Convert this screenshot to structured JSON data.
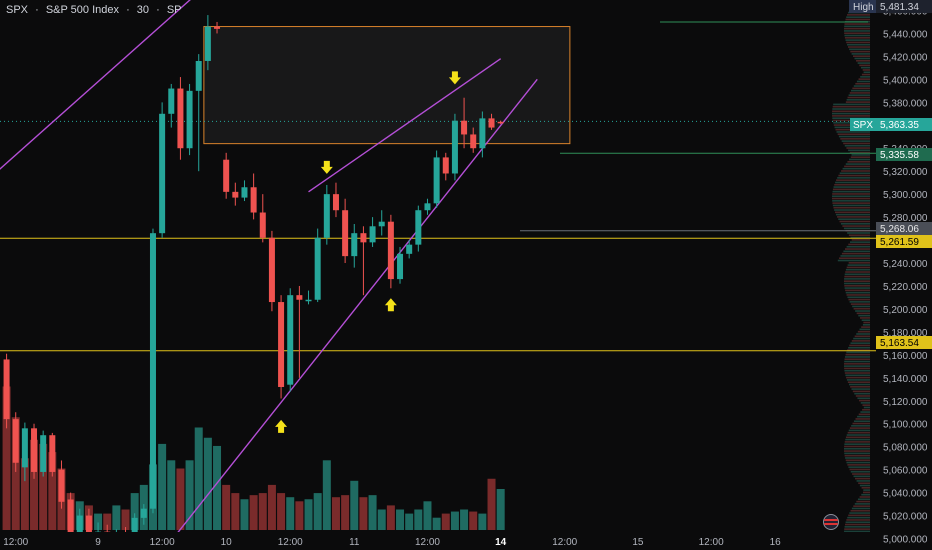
{
  "header": {
    "symbol": "SPX",
    "name": "S&P 500 Index",
    "interval": "30",
    "exchange": "SP",
    "separator": "·"
  },
  "price_labels": {
    "high_tag": "High",
    "high_value": "5,481.34",
    "current_symbol": "SPX",
    "current_value": "5,363.35",
    "level_1": "5,335.58",
    "level_2": "5,268.06",
    "level_3": "5,261.59",
    "level_4": "5,163.54"
  },
  "colors": {
    "background": "#0b0b0c",
    "up": "#26a69a",
    "down": "#ef5350",
    "up_volume": "#1f6b62",
    "down_volume": "#7a2b2b",
    "channel": "#b44fd6",
    "level_line": "#e0c21a",
    "box_border": "#d9822b",
    "arrow": "#f5e21a",
    "text": "#b2b5be",
    "current_tag": "#26a69a"
  },
  "chart_data": {
    "type": "candlestick",
    "title": "SPX · S&P 500 Index · 30 · SP",
    "ylim": [
      4990,
      5470
    ],
    "y_ticks": [
      5000,
      5020,
      5040,
      5060,
      5080,
      5100,
      5120,
      5140,
      5160,
      5180,
      5200,
      5220,
      5240,
      5260,
      5280,
      5300,
      5320,
      5340,
      5360,
      5380,
      5400,
      5420,
      5440,
      5460
    ],
    "x_ticks": [
      {
        "i": 1,
        "label": "12:00"
      },
      {
        "i": 10,
        "label": "9"
      },
      {
        "i": 17,
        "label": "12:00"
      },
      {
        "i": 24,
        "label": "10"
      },
      {
        "i": 31,
        "label": "12:00"
      },
      {
        "i": 38,
        "label": "11"
      },
      {
        "i": 46,
        "label": "12:00"
      },
      {
        "i": 54,
        "label": "14"
      },
      {
        "i": 61,
        "label": "12:00"
      },
      {
        "i": 69,
        "label": "15"
      },
      {
        "i": 77,
        "label": "12:00"
      },
      {
        "i": 84,
        "label": "16"
      }
    ],
    "candles": [
      {
        "o": 5156,
        "h": 5161,
        "c": 5104,
        "l": 5096
      },
      {
        "o": 5104,
        "h": 5110,
        "c": 5066,
        "l": 5058
      },
      {
        "o": 5062,
        "h": 5101,
        "c": 5096,
        "l": 5050
      },
      {
        "o": 5096,
        "h": 5100,
        "c": 5058,
        "l": 5052
      },
      {
        "o": 5058,
        "h": 5094,
        "c": 5090,
        "l": 5054
      },
      {
        "o": 5090,
        "h": 5092,
        "c": 5058,
        "l": 5054
      },
      {
        "o": 5060,
        "h": 5068,
        "c": 5032,
        "l": 5026
      },
      {
        "o": 5034,
        "h": 5040,
        "c": 5004,
        "l": 4998
      },
      {
        "o": 5004,
        "h": 5026,
        "c": 5020,
        "l": 4996
      },
      {
        "o": 5020,
        "h": 5026,
        "c": 5001,
        "l": 4995
      },
      {
        "o": 5001,
        "h": 5014,
        "c": 5006,
        "l": 4996
      },
      {
        "o": 5006,
        "h": 5012,
        "c": 5000,
        "l": 4994
      },
      {
        "o": 5000,
        "h": 5008,
        "c": 5003,
        "l": 4996
      },
      {
        "o": 5003,
        "h": 5010,
        "c": 5002,
        "l": 4996
      },
      {
        "o": 5002,
        "h": 5022,
        "c": 5018,
        "l": 5000
      },
      {
        "o": 5018,
        "h": 5030,
        "c": 5026,
        "l": 5012
      },
      {
        "o": 5026,
        "h": 5270,
        "c": 5266,
        "l": 5022
      },
      {
        "o": 5266,
        "h": 5380,
        "c": 5370,
        "l": 5262
      },
      {
        "o": 5370,
        "h": 5396,
        "c": 5392,
        "l": 5358
      },
      {
        "o": 5392,
        "h": 5402,
        "c": 5340,
        "l": 5330
      },
      {
        "o": 5340,
        "h": 5396,
        "c": 5390,
        "l": 5334
      },
      {
        "o": 5390,
        "h": 5422,
        "c": 5416,
        "l": 5320
      },
      {
        "o": 5416,
        "h": 5456,
        "c": 5446,
        "l": 5408
      },
      {
        "o": 5446,
        "h": 5450,
        "c": 5444,
        "l": 5440
      },
      {
        "o": 5330,
        "h": 5336,
        "c": 5302,
        "l": 5296
      },
      {
        "o": 5302,
        "h": 5310,
        "c": 5297,
        "l": 5290
      },
      {
        "o": 5297,
        "h": 5312,
        "c": 5306,
        "l": 5294
      },
      {
        "o": 5306,
        "h": 5318,
        "c": 5284,
        "l": 5278
      },
      {
        "o": 5284,
        "h": 5300,
        "c": 5262,
        "l": 5258
      },
      {
        "o": 5262,
        "h": 5268,
        "c": 5206,
        "l": 5198
      },
      {
        "o": 5206,
        "h": 5212,
        "c": 5132,
        "l": 5122
      },
      {
        "o": 5134,
        "h": 5218,
        "c": 5212,
        "l": 5128
      },
      {
        "o": 5212,
        "h": 5220,
        "c": 5208,
        "l": 5140
      },
      {
        "o": 5208,
        "h": 5216,
        "c": 5208,
        "l": 5204
      },
      {
        "o": 5208,
        "h": 5270,
        "c": 5262,
        "l": 5206
      },
      {
        "o": 5262,
        "h": 5308,
        "c": 5300,
        "l": 5256
      },
      {
        "o": 5300,
        "h": 5310,
        "c": 5286,
        "l": 5280
      },
      {
        "o": 5286,
        "h": 5296,
        "c": 5246,
        "l": 5240
      },
      {
        "o": 5246,
        "h": 5274,
        "c": 5266,
        "l": 5236
      },
      {
        "o": 5266,
        "h": 5272,
        "c": 5258,
        "l": 5212
      },
      {
        "o": 5258,
        "h": 5280,
        "c": 5272,
        "l": 5254
      },
      {
        "o": 5272,
        "h": 5286,
        "c": 5276,
        "l": 5264
      },
      {
        "o": 5276,
        "h": 5282,
        "c": 5226,
        "l": 5218
      },
      {
        "o": 5226,
        "h": 5254,
        "c": 5248,
        "l": 5222
      },
      {
        "o": 5248,
        "h": 5260,
        "c": 5256,
        "l": 5244
      },
      {
        "o": 5256,
        "h": 5290,
        "c": 5286,
        "l": 5250
      },
      {
        "o": 5286,
        "h": 5296,
        "c": 5292,
        "l": 5282
      },
      {
        "o": 5292,
        "h": 5338,
        "c": 5332,
        "l": 5288
      },
      {
        "o": 5332,
        "h": 5336,
        "c": 5318,
        "l": 5312
      },
      {
        "o": 5318,
        "h": 5370,
        "c": 5364,
        "l": 5312
      },
      {
        "o": 5364,
        "h": 5384,
        "c": 5352,
        "l": 5340
      },
      {
        "o": 5352,
        "h": 5358,
        "c": 5340,
        "l": 5336
      },
      {
        "o": 5340,
        "h": 5372,
        "c": 5366,
        "l": 5332
      },
      {
        "o": 5366,
        "h": 5370,
        "c": 5358,
        "l": 5356
      },
      {
        "o": 5363,
        "h": 5364,
        "c": 5362,
        "l": 5361
      }
    ],
    "volume": [
      70,
      55,
      35,
      44,
      42,
      38,
      30,
      18,
      14,
      12,
      8,
      8,
      12,
      10,
      18,
      22,
      32,
      42,
      34,
      30,
      34,
      50,
      45,
      41,
      22,
      18,
      15,
      17,
      18,
      22,
      18,
      16,
      14,
      15,
      18,
      34,
      16,
      17,
      24,
      16,
      17,
      10,
      12,
      10,
      8,
      10,
      14,
      6,
      8,
      9,
      10,
      9,
      8,
      25,
      20
    ],
    "volume_colors": [
      "down",
      "down",
      "down",
      "down",
      "down",
      "down",
      "down",
      "down",
      "up",
      "down",
      "up",
      "down",
      "up",
      "down",
      "up",
      "up",
      "up",
      "up",
      "up",
      "down",
      "up",
      "up",
      "up",
      "up",
      "down",
      "down",
      "up",
      "down",
      "down",
      "down",
      "down",
      "up",
      "down",
      "up",
      "up",
      "up",
      "down",
      "down",
      "up",
      "down",
      "up",
      "up",
      "down",
      "up",
      "up",
      "up",
      "up",
      "up",
      "down",
      "up",
      "up",
      "down",
      "up",
      "down",
      "up"
    ],
    "horizontal_levels": [
      5335.58,
      5268.06,
      5261.59,
      5163.54
    ],
    "current_price": 5363.35,
    "high_price": 5481.34,
    "resistance_box": {
      "from": 22,
      "to": 62,
      "top": 5446,
      "bottom": 5344
    },
    "channel_lines": [
      {
        "from": [
          -1,
          5320
        ],
        "to": [
          21,
          5476
        ]
      },
      {
        "from": [
          33,
          5302
        ],
        "to": [
          54,
          5418
        ]
      },
      {
        "from": [
          18,
          4998
        ],
        "to": [
          58,
          5400
        ]
      }
    ],
    "arrows": [
      {
        "i": 35,
        "price": 5322,
        "dir": "down"
      },
      {
        "i": 49,
        "price": 5400,
        "dir": "down"
      },
      {
        "i": 30,
        "price": 5099,
        "dir": "up"
      },
      {
        "i": 42,
        "price": 5205,
        "dir": "up"
      }
    ]
  }
}
